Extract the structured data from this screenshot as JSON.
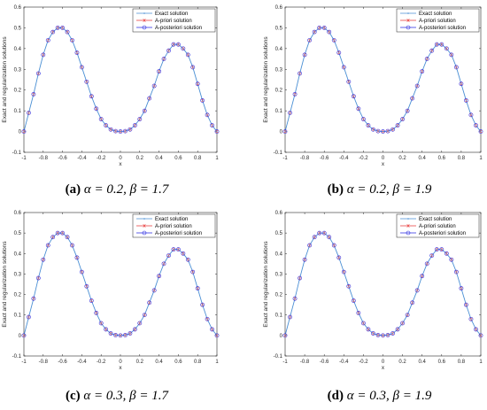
{
  "chart_data": [
    {
      "type": "line",
      "panel": "a",
      "caption": {
        "label": "(a)",
        "params": "α = 0.2, β = 1.7"
      },
      "xlabel": "x",
      "ylabel": "Exact and regularization solutions",
      "xlim": [
        -1,
        1
      ],
      "ylim": [
        -0.1,
        0.6
      ],
      "xticks": [
        "-1",
        "-0.8",
        "-0.6",
        "-0.4",
        "-0.2",
        "0",
        "0.2",
        "0.4",
        "0.6",
        "0.8",
        "1"
      ],
      "yticks": [
        "-0.1",
        "0",
        "0.1",
        "0.2",
        "0.3",
        "0.4",
        "0.5",
        "0.6"
      ],
      "legend": {
        "placement": "top-right",
        "entries": [
          "Exact solution",
          "A-priori solution",
          "A-posteriori solution"
        ]
      }
    },
    {
      "type": "line",
      "panel": "b",
      "caption": {
        "label": "(b)",
        "params": "α = 0.2, β = 1.9"
      },
      "xlabel": "x",
      "ylabel": "Exact and regularization solutions",
      "xlim": [
        -1,
        1
      ],
      "ylim": [
        -0.1,
        0.6
      ],
      "xticks": [
        "-1",
        "-0.8",
        "-0.6",
        "-0.4",
        "-0.2",
        "0",
        "0.2",
        "0.4",
        "0.6",
        "0.8",
        "1"
      ],
      "yticks": [
        "-0.1",
        "0",
        "0.1",
        "0.2",
        "0.3",
        "0.4",
        "0.5",
        "0.6"
      ],
      "legend": {
        "placement": "top-right",
        "entries": [
          "Exact solution",
          "A-priori solution",
          "A-posteriori solution"
        ]
      }
    },
    {
      "type": "line",
      "panel": "c",
      "caption": {
        "label": "(c)",
        "params": "α = 0.3, β = 1.7"
      },
      "xlabel": "x",
      "ylabel": "Exact and regularization solutions",
      "xlim": [
        -1,
        1
      ],
      "ylim": [
        -0.1,
        0.6
      ],
      "xticks": [
        "-1",
        "-0.8",
        "-0.6",
        "-0.4",
        "-0.2",
        "0",
        "0.2",
        "0.4",
        "0.6",
        "0.8",
        "1"
      ],
      "yticks": [
        "-0.1",
        "0",
        "0.1",
        "0.2",
        "0.3",
        "0.4",
        "0.5",
        "0.6"
      ],
      "legend": {
        "placement": "top-right",
        "entries": [
          "Exact solution",
          "A-priori solution",
          "A-posteriori solution"
        ]
      }
    },
    {
      "type": "line",
      "panel": "d",
      "caption": {
        "label": "(d)",
        "params": "α = 0.3, β = 1.9"
      },
      "xlabel": "x",
      "ylabel": "Exact and regularization solutions",
      "xlim": [
        -1,
        1
      ],
      "ylim": [
        -0.1,
        0.6
      ],
      "xticks": [
        "-1",
        "-0.8",
        "-0.6",
        "-0.4",
        "-0.2",
        "0",
        "0.2",
        "0.4",
        "0.6",
        "0.8",
        "1"
      ],
      "yticks": [
        "-0.1",
        "0",
        "0.1",
        "0.2",
        "0.3",
        "0.4",
        "0.5",
        "0.6"
      ],
      "legend": {
        "placement": "top-right",
        "entries": [
          "Exact solution",
          "A-priori solution",
          "A-posteriori solution"
        ]
      }
    }
  ],
  "series_data": {
    "x": [
      -1,
      -0.95,
      -0.9,
      -0.85,
      -0.8,
      -0.75,
      -0.7,
      -0.65,
      -0.6,
      -0.55,
      -0.5,
      -0.45,
      -0.4,
      -0.35,
      -0.3,
      -0.25,
      -0.2,
      -0.15,
      -0.1,
      -0.05,
      0,
      0.05,
      0.1,
      0.15,
      0.2,
      0.25,
      0.3,
      0.35,
      0.4,
      0.45,
      0.5,
      0.55,
      0.6,
      0.65,
      0.7,
      0.75,
      0.8,
      0.85,
      0.9,
      0.95,
      1
    ],
    "y": [
      0,
      0.09,
      0.18,
      0.28,
      0.37,
      0.44,
      0.48,
      0.5,
      0.5,
      0.48,
      0.44,
      0.38,
      0.31,
      0.24,
      0.17,
      0.11,
      0.06,
      0.03,
      0.01,
      0.002,
      0,
      0.002,
      0.01,
      0.03,
      0.06,
      0.1,
      0.16,
      0.22,
      0.29,
      0.35,
      0.39,
      0.42,
      0.42,
      0.4,
      0.37,
      0.31,
      0.23,
      0.15,
      0.08,
      0.03,
      0
    ]
  },
  "colors": {
    "exact": "#4a8fd4",
    "apriori": "#e83a3a",
    "aposteriori": "#2a2ae0",
    "axis": "#262626"
  }
}
